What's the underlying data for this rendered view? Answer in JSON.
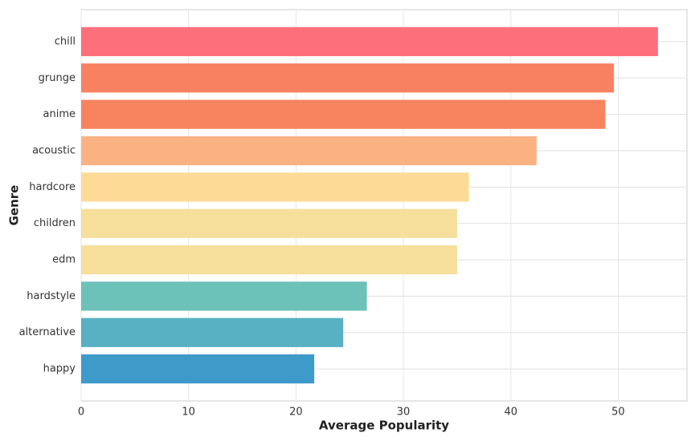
{
  "chart_data": {
    "type": "barh",
    "xlabel": "Average Popularity",
    "ylabel": "Genre",
    "categories": [
      "chill",
      "grunge",
      "anime",
      "acoustic",
      "hardcore",
      "children",
      "edm",
      "hardstyle",
      "alternative",
      "happy"
    ],
    "values": [
      53.7,
      49.6,
      48.8,
      42.4,
      36.1,
      35.0,
      35.0,
      26.6,
      24.4,
      21.7
    ],
    "colors": [
      "#fe6f7c",
      "#f88162",
      "#f7845f",
      "#fbb283",
      "#fddb97",
      "#f5df9a",
      "#f5df9a",
      "#6cc1b8",
      "#57b1c2",
      "#3e9ac9"
    ],
    "xlim": [
      0,
      56.4
    ],
    "xticks": [
      0,
      10,
      20,
      30,
      40,
      50
    ],
    "grid": true
  }
}
